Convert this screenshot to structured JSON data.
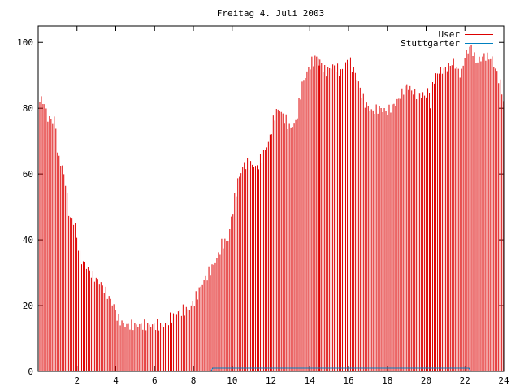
{
  "chart_data": {
    "type": "bar",
    "title": "Freitag 4. Juli 2003",
    "xlabel": "",
    "ylabel": "",
    "xlim": [
      0,
      24
    ],
    "ylim": [
      0,
      105
    ],
    "xticks": [
      2,
      4,
      6,
      8,
      10,
      12,
      14,
      16,
      18,
      20,
      22,
      24
    ],
    "yticks": [
      0,
      20,
      40,
      60,
      80,
      100
    ],
    "grid": false,
    "legend_position": "top-right",
    "series": [
      {
        "name": "User",
        "color": "#dd0000",
        "style": "impulses",
        "x_start": 0.083,
        "x_step": 0.083,
        "anchors": [
          [
            0,
            83
          ],
          [
            0.3,
            82
          ],
          [
            0.5,
            77
          ],
          [
            0.9,
            76
          ],
          [
            1.0,
            66
          ],
          [
            1.2,
            63
          ],
          [
            1.4,
            58
          ],
          [
            1.6,
            47
          ],
          [
            1.9,
            45
          ],
          [
            2.0,
            40
          ],
          [
            2.2,
            34
          ],
          [
            2.5,
            32
          ],
          [
            2.8,
            29
          ],
          [
            3.2,
            27
          ],
          [
            3.6,
            23
          ],
          [
            3.9,
            20
          ],
          [
            4.1,
            16
          ],
          [
            4.5,
            14
          ],
          [
            5.0,
            14
          ],
          [
            6.0,
            14
          ],
          [
            6.5,
            14
          ],
          [
            6.8,
            16
          ],
          [
            7.2,
            18
          ],
          [
            7.8,
            19
          ],
          [
            8.1,
            22
          ],
          [
            8.4,
            26
          ],
          [
            8.8,
            30
          ],
          [
            9.2,
            34
          ],
          [
            9.5,
            39
          ],
          [
            9.8,
            40
          ],
          [
            10.0,
            48
          ],
          [
            10.3,
            58
          ],
          [
            10.6,
            63
          ],
          [
            11.0,
            63
          ],
          [
            11.3,
            62
          ],
          [
            11.6,
            66
          ],
          [
            11.9,
            70
          ],
          [
            12.2,
            78
          ],
          [
            12.4,
            80
          ],
          [
            12.7,
            77
          ],
          [
            13.0,
            74
          ],
          [
            13.3,
            76
          ],
          [
            13.6,
            87
          ],
          [
            14.0,
            93
          ],
          [
            14.4,
            96
          ],
          [
            14.8,
            91
          ],
          [
            15.2,
            93
          ],
          [
            15.6,
            91
          ],
          [
            16.0,
            95
          ],
          [
            16.4,
            90
          ],
          [
            16.8,
            82
          ],
          [
            17.2,
            79
          ],
          [
            17.6,
            80
          ],
          [
            18.0,
            79
          ],
          [
            18.5,
            82
          ],
          [
            19.0,
            87
          ],
          [
            19.5,
            84
          ],
          [
            20.0,
            84
          ],
          [
            20.3,
            87
          ],
          [
            20.6,
            91
          ],
          [
            21.0,
            92
          ],
          [
            21.4,
            94
          ],
          [
            21.8,
            90
          ],
          [
            22.0,
            96
          ],
          [
            22.3,
            99
          ],
          [
            22.6,
            94
          ],
          [
            23.0,
            96
          ],
          [
            23.4,
            95
          ],
          [
            23.8,
            88
          ],
          [
            24.0,
            82
          ]
        ],
        "spikes": [
          [
            12.0,
            72
          ],
          [
            14.5,
            93
          ],
          [
            20.2,
            80
          ]
        ]
      },
      {
        "name": "Stuttgarter",
        "color": "#0080c0",
        "style": "lines",
        "points": [
          [
            0,
            0
          ],
          [
            8.9,
            0
          ],
          [
            9.0,
            1
          ],
          [
            22.2,
            1
          ],
          [
            22.3,
            0
          ],
          [
            24,
            0
          ]
        ]
      }
    ]
  }
}
